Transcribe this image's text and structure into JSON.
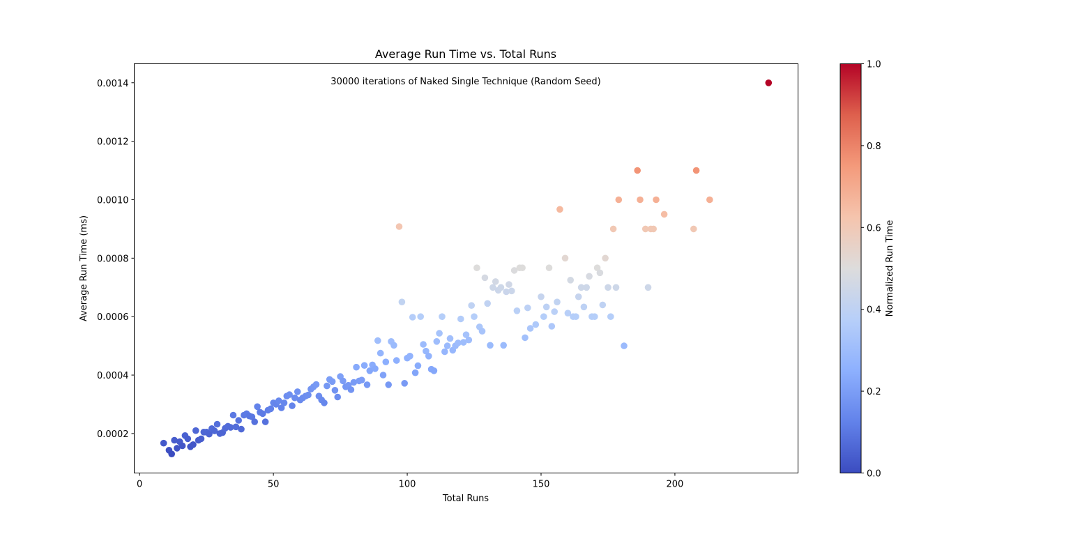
{
  "chart_data": {
    "type": "scatter",
    "title": "Average Run Time vs. Total Runs",
    "annotation": "30000 iterations of Naked Single Technique (Random Seed)",
    "xlabel": "Total Runs",
    "ylabel": "Average Run Time (ms)",
    "xlim": [
      -2,
      246
    ],
    "ylim": [
      6.5e-05,
      0.001465
    ],
    "xticks": [
      0,
      50,
      100,
      150,
      200
    ],
    "yticks": [
      0.0002,
      0.0004,
      0.0006,
      0.0008,
      0.001,
      0.0012,
      0.0014
    ],
    "ytick_labels": [
      "0.0002",
      "0.0004",
      "0.0006",
      "0.0008",
      "0.0010",
      "0.0012",
      "0.0014"
    ],
    "grid": false,
    "colormap": "coolwarm",
    "colorbar": {
      "label": "Normalized Run Time",
      "range": [
        0.0,
        1.0
      ],
      "ticks": [
        0.0,
        0.2,
        0.4,
        0.6,
        0.8,
        1.0
      ],
      "tick_labels": [
        "0.0",
        "0.2",
        "0.4",
        "0.6",
        "0.8",
        "1.0"
      ],
      "colors": [
        "#3b4cc0",
        "#6282ea",
        "#8db0fe",
        "#b7cff9",
        "#dddcdc",
        "#f5c4ad",
        "#f49a7b",
        "#de604d",
        "#b40426"
      ]
    },
    "points": [
      [
        9,
        0.000167
      ],
      [
        11,
        0.000143
      ],
      [
        12,
        0.00013
      ],
      [
        13,
        0.000177
      ],
      [
        14,
        0.00015
      ],
      [
        15,
        0.000172
      ],
      [
        16,
        0.000158
      ],
      [
        17,
        0.000193
      ],
      [
        18,
        0.000182
      ],
      [
        19,
        0.000155
      ],
      [
        20,
        0.000162
      ],
      [
        21,
        0.00021
      ],
      [
        22,
        0.000177
      ],
      [
        23,
        0.000182
      ],
      [
        24,
        0.000205
      ],
      [
        25,
        0.000205
      ],
      [
        26,
        0.000198
      ],
      [
        27,
        0.000217
      ],
      [
        28,
        0.000209
      ],
      [
        29,
        0.000232
      ],
      [
        30,
        0.0002
      ],
      [
        31,
        0.000203
      ],
      [
        32,
        0.000218
      ],
      [
        33,
        0.000225
      ],
      [
        34,
        0.000221
      ],
      [
        35,
        0.000263
      ],
      [
        36,
        0.000223
      ],
      [
        37,
        0.000245
      ],
      [
        38,
        0.000215
      ],
      [
        39,
        0.000263
      ],
      [
        40,
        0.000268
      ],
      [
        41,
        0.00026
      ],
      [
        42,
        0.000257
      ],
      [
        43,
        0.00024
      ],
      [
        44,
        0.000292
      ],
      [
        45,
        0.000273
      ],
      [
        46,
        0.000268
      ],
      [
        47,
        0.00024
      ],
      [
        48,
        0.00028
      ],
      [
        49,
        0.000285
      ],
      [
        50,
        0.000305
      ],
      [
        51,
        0.0003
      ],
      [
        52,
        0.000312
      ],
      [
        53,
        0.000288
      ],
      [
        54,
        0.000305
      ],
      [
        55,
        0.000328
      ],
      [
        56,
        0.000333
      ],
      [
        57,
        0.000295
      ],
      [
        58,
        0.000322
      ],
      [
        59,
        0.000343
      ],
      [
        60,
        0.000315
      ],
      [
        61,
        0.000322
      ],
      [
        62,
        0.000328
      ],
      [
        63,
        0.000332
      ],
      [
        64,
        0.000352
      ],
      [
        65,
        0.00036
      ],
      [
        66,
        0.000368
      ],
      [
        67,
        0.000328
      ],
      [
        68,
        0.000315
      ],
      [
        69,
        0.000305
      ],
      [
        70,
        0.000363
      ],
      [
        71,
        0.000385
      ],
      [
        72,
        0.000378
      ],
      [
        73,
        0.000348
      ],
      [
        74,
        0.000325
      ],
      [
        75,
        0.000395
      ],
      [
        76,
        0.00038
      ],
      [
        77,
        0.00036
      ],
      [
        78,
        0.000365
      ],
      [
        79,
        0.00035
      ],
      [
        80,
        0.000375
      ],
      [
        81,
        0.000427
      ],
      [
        82,
        0.00038
      ],
      [
        83,
        0.000383
      ],
      [
        84,
        0.000433
      ],
      [
        85,
        0.000367
      ],
      [
        86,
        0.000415
      ],
      [
        87,
        0.000435
      ],
      [
        88,
        0.000422
      ],
      [
        89,
        0.000518
      ],
      [
        90,
        0.000475
      ],
      [
        91,
        0.0004
      ],
      [
        92,
        0.000445
      ],
      [
        93,
        0.000367
      ],
      [
        94,
        0.000515
      ],
      [
        95,
        0.000502
      ],
      [
        96,
        0.00045
      ],
      [
        97,
        0.000908
      ],
      [
        98,
        0.00065
      ],
      [
        99,
        0.000372
      ],
      [
        100,
        0.000458
      ],
      [
        101,
        0.000465
      ],
      [
        102,
        0.000598
      ],
      [
        103,
        0.000408
      ],
      [
        104,
        0.000432
      ],
      [
        105,
        0.0006
      ],
      [
        106,
        0.000505
      ],
      [
        107,
        0.000482
      ],
      [
        108,
        0.000465
      ],
      [
        109,
        0.00042
      ],
      [
        110,
        0.000415
      ],
      [
        111,
        0.000515
      ],
      [
        112,
        0.000543
      ],
      [
        113,
        0.0006
      ],
      [
        114,
        0.00048
      ],
      [
        115,
        0.0005
      ],
      [
        116,
        0.000525
      ],
      [
        117,
        0.000485
      ],
      [
        118,
        0.0005
      ],
      [
        119,
        0.00051
      ],
      [
        120,
        0.000592
      ],
      [
        121,
        0.000512
      ],
      [
        122,
        0.000538
      ],
      [
        123,
        0.00052
      ],
      [
        124,
        0.000638
      ],
      [
        125,
        0.0006
      ],
      [
        126,
        0.000767
      ],
      [
        127,
        0.000565
      ],
      [
        128,
        0.00055
      ],
      [
        129,
        0.000733
      ],
      [
        130,
        0.000645
      ],
      [
        131,
        0.000502
      ],
      [
        132,
        0.0007
      ],
      [
        133,
        0.00072
      ],
      [
        134,
        0.00069
      ],
      [
        135,
        0.0007
      ],
      [
        136,
        0.000502
      ],
      [
        137,
        0.000685
      ],
      [
        138,
        0.00071
      ],
      [
        139,
        0.000688
      ],
      [
        140,
        0.000758
      ],
      [
        141,
        0.00062
      ],
      [
        142,
        0.000767
      ],
      [
        143,
        0.000767
      ],
      [
        144,
        0.000528
      ],
      [
        145,
        0.00063
      ],
      [
        146,
        0.00056
      ],
      [
        148,
        0.000573
      ],
      [
        150,
        0.000668
      ],
      [
        151,
        0.0006
      ],
      [
        152,
        0.000633
      ],
      [
        153,
        0.000767
      ],
      [
        154,
        0.000567
      ],
      [
        155,
        0.000617
      ],
      [
        156,
        0.00065
      ],
      [
        157,
        0.000967
      ],
      [
        159,
        0.0008
      ],
      [
        160,
        0.000612
      ],
      [
        161,
        0.000725
      ],
      [
        162,
        0.0006
      ],
      [
        163,
        0.0006
      ],
      [
        164,
        0.000668
      ],
      [
        165,
        0.0007
      ],
      [
        166,
        0.000633
      ],
      [
        167,
        0.0007
      ],
      [
        168,
        0.000738
      ],
      [
        169,
        0.0006
      ],
      [
        170,
        0.0006
      ],
      [
        171,
        0.000767
      ],
      [
        172,
        0.00075
      ],
      [
        173,
        0.00064
      ],
      [
        174,
        0.0008
      ],
      [
        175,
        0.0007
      ],
      [
        176,
        0.0006
      ],
      [
        177,
        0.0009
      ],
      [
        178,
        0.0007
      ],
      [
        179,
        0.001
      ],
      [
        181,
        0.0005
      ],
      [
        186,
        0.0011
      ],
      [
        187,
        0.001
      ],
      [
        189,
        0.0009
      ],
      [
        190,
        0.0007
      ],
      [
        191,
        0.0009
      ],
      [
        192,
        0.0009
      ],
      [
        193,
        0.001
      ],
      [
        196,
        0.00095
      ],
      [
        207,
        0.0009
      ],
      [
        208,
        0.0011
      ],
      [
        213,
        0.001
      ],
      [
        235,
        0.0014
      ]
    ]
  }
}
